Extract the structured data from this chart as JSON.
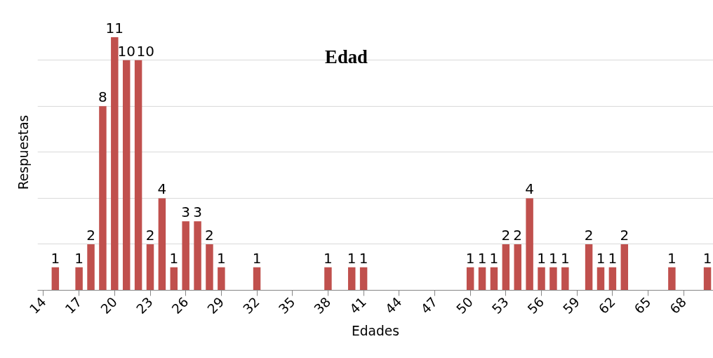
{
  "chart_data": {
    "type": "bar",
    "title": "Edad",
    "xlabel": "Edades",
    "ylabel": "Respuestas",
    "categories": [
      "14",
      null,
      null,
      "17",
      null,
      null,
      "20",
      null,
      null,
      "23",
      null,
      null,
      "26",
      null,
      null,
      "29",
      null,
      null,
      "32",
      null,
      null,
      "35",
      null,
      null,
      "38",
      null,
      null,
      "41",
      null,
      null,
      "44",
      null,
      null,
      "47",
      null,
      null,
      "50",
      null,
      null,
      "53",
      null,
      null,
      "56",
      null,
      null,
      "59",
      null,
      null,
      "62",
      null,
      null,
      "65",
      null,
      null,
      "68",
      null,
      null
    ],
    "values": [
      0,
      1,
      0,
      1,
      2,
      8,
      11,
      10,
      10,
      2,
      4,
      1,
      3,
      3,
      2,
      1,
      0,
      0,
      1,
      0,
      0,
      0,
      0,
      0,
      1,
      0,
      1,
      1,
      0,
      0,
      0,
      0,
      0,
      0,
      0,
      0,
      1,
      1,
      1,
      2,
      2,
      4,
      1,
      1,
      1,
      0,
      2,
      1,
      1,
      2,
      0,
      0,
      0,
      1,
      0,
      0,
      1
    ],
    "value_labels": [
      null,
      "1",
      null,
      "1",
      "2",
      "8",
      "11",
      "10",
      "10",
      "2",
      "4",
      "1",
      "3",
      "3",
      "2",
      "1",
      null,
      null,
      "1",
      null,
      null,
      null,
      null,
      null,
      "1",
      null,
      "1",
      "1",
      null,
      null,
      null,
      null,
      null,
      null,
      null,
      null,
      "1",
      "1",
      "1",
      "2",
      "2",
      "4",
      "1",
      "1",
      "1",
      null,
      "2",
      "1",
      "1",
      "2",
      null,
      null,
      null,
      "1",
      null,
      null,
      "1"
    ],
    "color": "#c0504d",
    "yticks": [
      {
        "value": 0,
        "label": null
      },
      {
        "value": 2,
        "label": null
      },
      {
        "value": 4,
        "label": null
      },
      {
        "value": 6,
        "label": null
      },
      {
        "value": 8,
        "label": null
      },
      {
        "value": 10,
        "label": null
      }
    ],
    "grid": "y",
    "tick_labels": "x"
  }
}
